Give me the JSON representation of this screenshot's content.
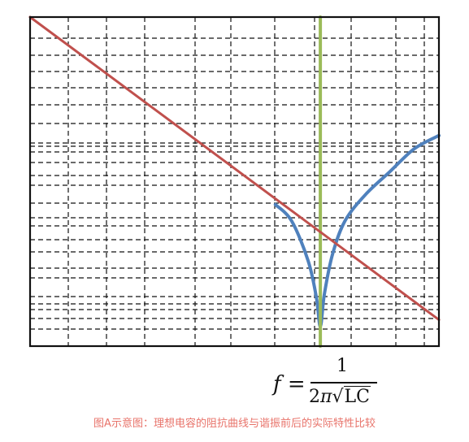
{
  "chart_data": {
    "type": "line",
    "title": "",
    "xlabel": "",
    "ylabel": "",
    "grid": true,
    "x_range": [
      0,
      10
    ],
    "y_range": [
      0,
      10
    ],
    "series": [
      {
        "color": "#c0504d",
        "points": [
          [
            0,
            10
          ],
          [
            10,
            0.8
          ]
        ]
      },
      {
        "color": "#4f81bd",
        "points": [
          [
            6.0,
            4.3
          ],
          [
            6.4,
            3.8
          ],
          [
            6.8,
            2.6
          ],
          [
            7.0,
            1.5
          ],
          [
            7.1,
            0.6
          ],
          [
            7.2,
            1.6
          ],
          [
            7.4,
            2.8
          ],
          [
            7.7,
            3.8
          ],
          [
            8.2,
            4.6
          ],
          [
            8.8,
            5.3
          ],
          [
            9.4,
            6.0
          ],
          [
            10.0,
            6.4
          ]
        ]
      },
      {
        "color": "#9bbb59",
        "points": [
          [
            7.1,
            0
          ],
          [
            7.1,
            10
          ]
        ]
      }
    ]
  },
  "formula": {
    "lhs": "f =",
    "numerator": "1",
    "den_prefix": "2",
    "den_pi": "π",
    "den_radical": "√",
    "den_radicand": "LC"
  },
  "caption": "图A示意图：理想电容的阻抗曲线与谐振前后的实际特性比较"
}
